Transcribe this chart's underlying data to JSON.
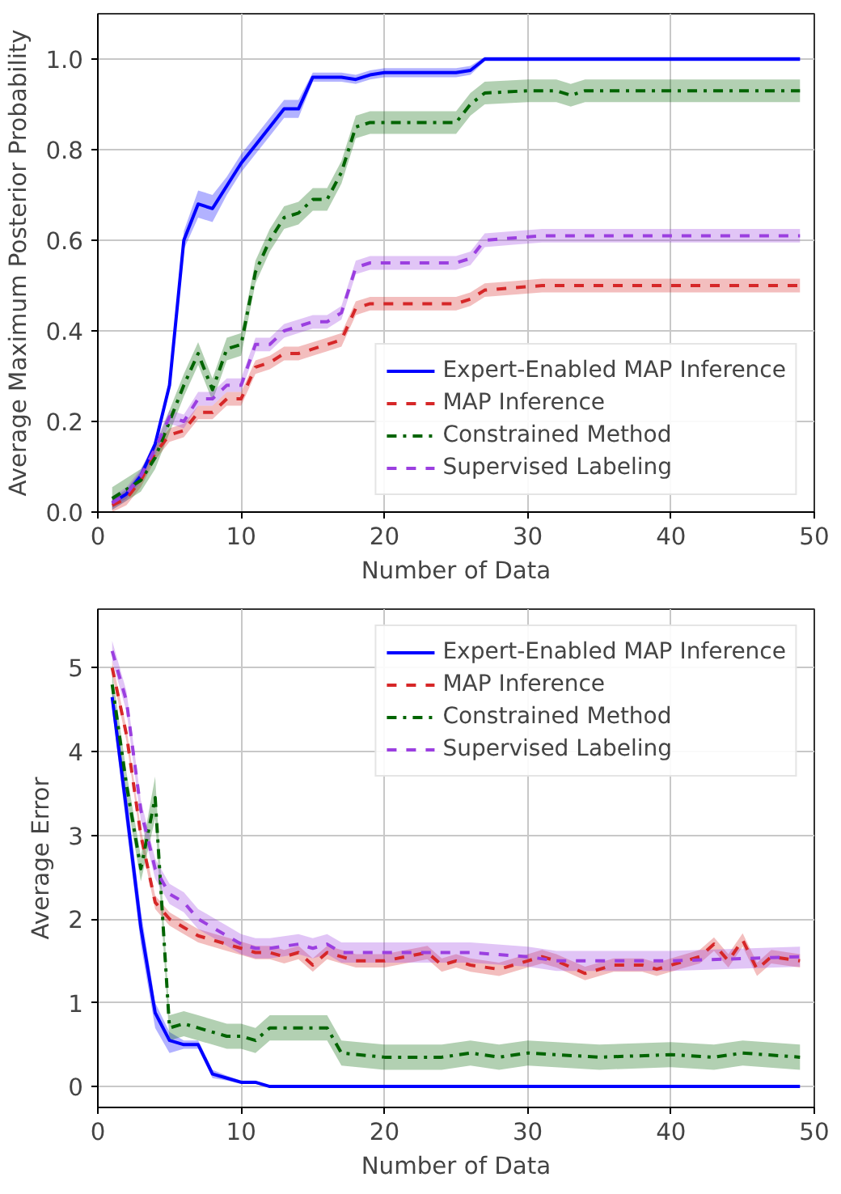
{
  "chart_data": [
    {
      "type": "line",
      "xlabel": "Number of Data",
      "ylabel": "Average Maximum Posterior Probability",
      "xlim": [
        0,
        50
      ],
      "ylim": [
        0,
        1.1
      ],
      "xticks": [
        0,
        10,
        20,
        30,
        40,
        50
      ],
      "yticks": [
        {
          "value": 0,
          "label": "0.0"
        },
        0.2,
        0.4,
        0.6,
        0.8,
        {
          "value": 1,
          "label": "1.0"
        }
      ],
      "grid": true,
      "legend": "bottom right",
      "series": [
        {
          "name": "Expert-Enabled MAP Inference",
          "color": "#0000ff",
          "line_style": "solid",
          "x": [
            1,
            2,
            3,
            4,
            5,
            6,
            7,
            8,
            9,
            10,
            11,
            12,
            13,
            14,
            15,
            16,
            17,
            18,
            19,
            20,
            25,
            26,
            27,
            49
          ],
          "values": [
            0.02,
            0.04,
            0.08,
            0.15,
            0.28,
            0.6,
            0.68,
            0.67,
            0.72,
            0.77,
            0.81,
            0.85,
            0.89,
            0.89,
            0.96,
            0.96,
            0.96,
            0.955,
            0.965,
            0.97,
            0.97,
            0.975,
            1.0,
            1.0
          ],
          "lower": [
            0.01,
            0.03,
            0.07,
            0.14,
            0.27,
            0.58,
            0.65,
            0.64,
            0.7,
            0.75,
            0.79,
            0.83,
            0.87,
            0.87,
            0.95,
            0.95,
            0.95,
            0.945,
            0.955,
            0.96,
            0.96,
            0.965,
            0.995,
            0.995
          ],
          "upper": [
            0.03,
            0.05,
            0.09,
            0.16,
            0.29,
            0.62,
            0.71,
            0.7,
            0.74,
            0.79,
            0.83,
            0.87,
            0.91,
            0.91,
            0.97,
            0.97,
            0.97,
            0.965,
            0.975,
            0.98,
            0.98,
            0.985,
            1.005,
            1.005
          ]
        },
        {
          "name": "MAP Inference",
          "color": "#d62728",
          "line_style": "dashed",
          "x": [
            1,
            2,
            3,
            4,
            5,
            6,
            7,
            8,
            9,
            10,
            11,
            12,
            13,
            14,
            15,
            16,
            17,
            18,
            19,
            25,
            26,
            27,
            29,
            31,
            49
          ],
          "values": [
            0.015,
            0.03,
            0.07,
            0.13,
            0.17,
            0.18,
            0.22,
            0.22,
            0.25,
            0.25,
            0.32,
            0.33,
            0.35,
            0.35,
            0.36,
            0.37,
            0.38,
            0.45,
            0.46,
            0.46,
            0.47,
            0.49,
            0.495,
            0.5,
            0.5
          ],
          "lower": [
            0.0,
            0.015,
            0.055,
            0.115,
            0.155,
            0.165,
            0.205,
            0.205,
            0.235,
            0.235,
            0.305,
            0.315,
            0.335,
            0.335,
            0.345,
            0.355,
            0.365,
            0.435,
            0.445,
            0.445,
            0.455,
            0.475,
            0.48,
            0.485,
            0.485
          ],
          "upper": [
            0.03,
            0.045,
            0.085,
            0.145,
            0.185,
            0.195,
            0.235,
            0.235,
            0.265,
            0.265,
            0.335,
            0.345,
            0.365,
            0.365,
            0.375,
            0.385,
            0.395,
            0.465,
            0.475,
            0.475,
            0.485,
            0.505,
            0.51,
            0.515,
            0.515
          ]
        },
        {
          "name": "Constrained Method",
          "color": "#006400",
          "line_style": "dashdot",
          "x": [
            1,
            2,
            3,
            4,
            5,
            6,
            7,
            8,
            9,
            10,
            11,
            12,
            13,
            14,
            15,
            16,
            17,
            18,
            19,
            25,
            26,
            27,
            30,
            32,
            33,
            34,
            49
          ],
          "values": [
            0.03,
            0.05,
            0.07,
            0.12,
            0.2,
            0.28,
            0.35,
            0.27,
            0.36,
            0.37,
            0.53,
            0.6,
            0.65,
            0.66,
            0.69,
            0.69,
            0.75,
            0.85,
            0.86,
            0.86,
            0.9,
            0.925,
            0.93,
            0.93,
            0.92,
            0.93,
            0.93
          ],
          "lower": [
            0.005,
            0.025,
            0.045,
            0.095,
            0.175,
            0.255,
            0.325,
            0.245,
            0.335,
            0.345,
            0.505,
            0.575,
            0.625,
            0.635,
            0.665,
            0.665,
            0.725,
            0.825,
            0.835,
            0.835,
            0.875,
            0.9,
            0.905,
            0.905,
            0.895,
            0.905,
            0.905
          ],
          "upper": [
            0.055,
            0.075,
            0.095,
            0.145,
            0.225,
            0.305,
            0.375,
            0.295,
            0.385,
            0.395,
            0.555,
            0.625,
            0.675,
            0.685,
            0.715,
            0.715,
            0.775,
            0.875,
            0.885,
            0.885,
            0.925,
            0.95,
            0.955,
            0.955,
            0.945,
            0.955,
            0.955
          ]
        },
        {
          "name": "Supervised Labeling",
          "color": "#9b3fe0",
          "line_style": "dashed",
          "x": [
            1,
            2,
            3,
            4,
            5,
            6,
            7,
            8,
            9,
            10,
            11,
            12,
            13,
            14,
            15,
            16,
            17,
            18,
            19,
            25,
            26,
            27,
            29,
            31,
            49
          ],
          "values": [
            0.02,
            0.04,
            0.08,
            0.14,
            0.21,
            0.2,
            0.25,
            0.25,
            0.28,
            0.28,
            0.37,
            0.37,
            0.4,
            0.41,
            0.42,
            0.42,
            0.44,
            0.54,
            0.55,
            0.55,
            0.56,
            0.6,
            0.605,
            0.61,
            0.61
          ],
          "lower": [
            0.005,
            0.025,
            0.065,
            0.125,
            0.195,
            0.185,
            0.235,
            0.235,
            0.265,
            0.265,
            0.355,
            0.355,
            0.385,
            0.395,
            0.405,
            0.405,
            0.425,
            0.525,
            0.535,
            0.535,
            0.545,
            0.585,
            0.59,
            0.595,
            0.595
          ],
          "upper": [
            0.035,
            0.055,
            0.095,
            0.155,
            0.225,
            0.215,
            0.265,
            0.265,
            0.295,
            0.295,
            0.385,
            0.385,
            0.415,
            0.425,
            0.435,
            0.435,
            0.455,
            0.555,
            0.565,
            0.565,
            0.575,
            0.615,
            0.62,
            0.625,
            0.625
          ]
        }
      ]
    },
    {
      "type": "line",
      "xlabel": "Number of Data",
      "ylabel": "Average Error",
      "xlim": [
        0,
        50
      ],
      "ylim": [
        -0.25,
        5.7
      ],
      "xticks": [
        0,
        10,
        20,
        30,
        40,
        50
      ],
      "yticks": [
        0,
        1,
        2,
        3,
        4,
        5
      ],
      "grid": true,
      "legend": "top right",
      "series": [
        {
          "name": "Expert-Enabled MAP Inference",
          "color": "#0000ff",
          "line_style": "solid",
          "x": [
            1,
            2,
            3,
            4,
            5,
            6,
            7,
            8,
            9,
            10,
            11,
            12,
            49
          ],
          "values": [
            4.65,
            3.3,
            1.9,
            0.88,
            0.55,
            0.5,
            0.5,
            0.15,
            0.1,
            0.05,
            0.05,
            0,
            0
          ],
          "lower": [
            4.5,
            3.1,
            1.7,
            0.7,
            0.4,
            0.45,
            0.45,
            0.1,
            0.07,
            0.03,
            0.03,
            0,
            0
          ],
          "upper": [
            4.8,
            3.5,
            2.1,
            1.0,
            0.65,
            0.55,
            0.55,
            0.2,
            0.13,
            0.07,
            0.07,
            0,
            0
          ]
        },
        {
          "name": "MAP Inference",
          "color": "#d62728",
          "line_style": "dashed",
          "x": [
            1,
            2,
            3,
            4,
            5,
            6,
            7,
            8,
            9,
            10,
            11,
            12,
            13,
            14,
            15,
            16,
            17,
            18,
            20,
            23,
            24,
            25,
            26,
            28,
            30,
            31,
            32,
            34,
            36,
            38,
            39,
            41,
            42,
            43,
            44,
            45,
            46,
            47,
            49
          ],
          "values": [
            5.0,
            4.2,
            3.0,
            2.2,
            2.0,
            1.9,
            1.8,
            1.75,
            1.7,
            1.65,
            1.6,
            1.6,
            1.55,
            1.6,
            1.45,
            1.6,
            1.55,
            1.5,
            1.5,
            1.6,
            1.45,
            1.5,
            1.45,
            1.4,
            1.5,
            1.55,
            1.5,
            1.35,
            1.45,
            1.45,
            1.4,
            1.5,
            1.55,
            1.7,
            1.5,
            1.75,
            1.4,
            1.55,
            1.5
          ],
          "lower": [
            4.92,
            4.12,
            2.92,
            2.12,
            1.92,
            1.82,
            1.72,
            1.67,
            1.62,
            1.57,
            1.52,
            1.52,
            1.47,
            1.52,
            1.37,
            1.52,
            1.47,
            1.42,
            1.42,
            1.52,
            1.37,
            1.42,
            1.37,
            1.32,
            1.42,
            1.47,
            1.42,
            1.27,
            1.37,
            1.37,
            1.32,
            1.42,
            1.47,
            1.62,
            1.42,
            1.67,
            1.32,
            1.47,
            1.42
          ],
          "upper": [
            5.08,
            4.28,
            3.08,
            2.28,
            2.08,
            1.98,
            1.88,
            1.83,
            1.78,
            1.73,
            1.68,
            1.68,
            1.63,
            1.68,
            1.53,
            1.68,
            1.63,
            1.58,
            1.58,
            1.68,
            1.53,
            1.58,
            1.53,
            1.48,
            1.58,
            1.63,
            1.58,
            1.43,
            1.53,
            1.53,
            1.48,
            1.58,
            1.63,
            1.78,
            1.58,
            1.83,
            1.48,
            1.63,
            1.58
          ]
        },
        {
          "name": "Constrained Method",
          "color": "#006400",
          "line_style": "dashdot",
          "x": [
            1,
            2,
            3,
            4,
            5,
            6,
            7,
            8,
            9,
            10,
            11,
            12,
            14,
            16,
            17,
            20,
            24,
            26,
            28,
            30,
            35,
            40,
            43,
            45,
            49
          ],
          "values": [
            4.8,
            3.6,
            2.6,
            3.45,
            0.7,
            0.75,
            0.7,
            0.65,
            0.6,
            0.6,
            0.55,
            0.7,
            0.7,
            0.7,
            0.4,
            0.35,
            0.35,
            0.4,
            0.35,
            0.4,
            0.35,
            0.38,
            0.35,
            0.4,
            0.35
          ],
          "lower": [
            4.65,
            3.45,
            2.45,
            3.2,
            0.55,
            0.6,
            0.55,
            0.5,
            0.45,
            0.45,
            0.4,
            0.55,
            0.55,
            0.55,
            0.25,
            0.2,
            0.2,
            0.25,
            0.2,
            0.25,
            0.2,
            0.23,
            0.2,
            0.25,
            0.2
          ],
          "upper": [
            4.95,
            3.75,
            2.75,
            3.7,
            0.85,
            0.9,
            0.85,
            0.8,
            0.75,
            0.75,
            0.7,
            0.85,
            0.85,
            0.85,
            0.55,
            0.5,
            0.5,
            0.55,
            0.5,
            0.55,
            0.5,
            0.53,
            0.5,
            0.55,
            0.5
          ]
        },
        {
          "name": "Supervised Labeling",
          "color": "#9b3fe0",
          "line_style": "dashed",
          "x": [
            1,
            2,
            3,
            4,
            5,
            6,
            7,
            8,
            9,
            10,
            11,
            12,
            14,
            15,
            16,
            17,
            20,
            25,
            26,
            30,
            32,
            40,
            49
          ],
          "values": [
            5.2,
            4.6,
            3.3,
            2.6,
            2.3,
            2.2,
            2.0,
            1.9,
            1.8,
            1.7,
            1.65,
            1.65,
            1.7,
            1.65,
            1.7,
            1.6,
            1.6,
            1.6,
            1.6,
            1.55,
            1.5,
            1.5,
            1.55
          ],
          "lower": [
            5.08,
            4.48,
            3.18,
            2.48,
            2.18,
            2.08,
            1.88,
            1.78,
            1.68,
            1.58,
            1.53,
            1.53,
            1.58,
            1.53,
            1.58,
            1.48,
            1.48,
            1.48,
            1.48,
            1.43,
            1.38,
            1.38,
            1.43
          ],
          "upper": [
            5.32,
            4.72,
            3.42,
            2.72,
            2.42,
            2.32,
            2.12,
            2.02,
            1.92,
            1.82,
            1.77,
            1.77,
            1.82,
            1.77,
            1.82,
            1.72,
            1.72,
            1.72,
            1.72,
            1.67,
            1.62,
            1.62,
            1.67
          ]
        }
      ]
    }
  ]
}
